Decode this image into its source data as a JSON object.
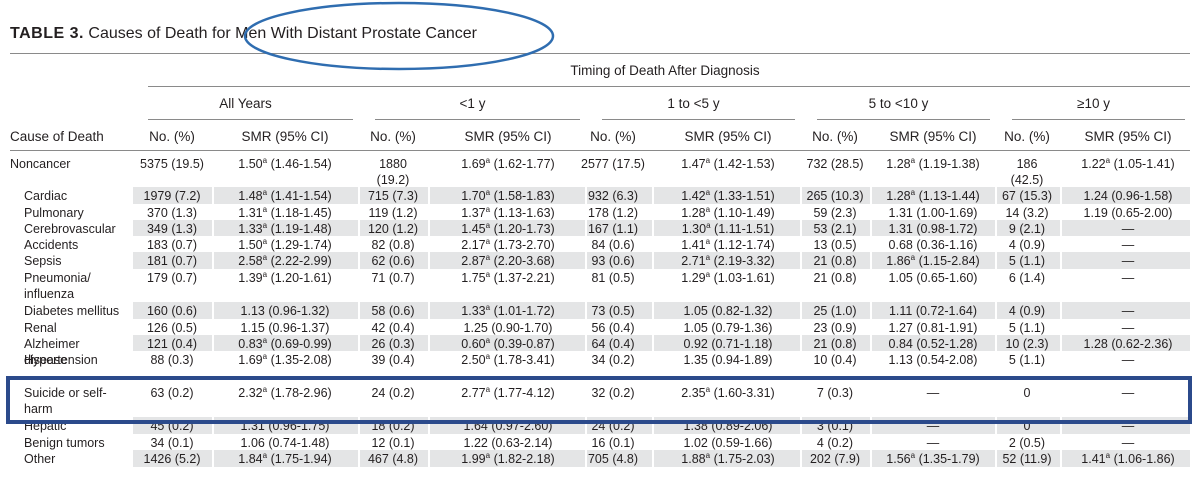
{
  "title": {
    "label": "TABLE 3.",
    "text": "Causes of Death for Men With Distant Prostate Cancer"
  },
  "table": {
    "spanner": "Timing of Death After Diagnosis",
    "groups": [
      "All Years",
      "<1 y",
      "1 to <5 y",
      "5 to <10 y",
      "≥10 y"
    ],
    "columns": [
      "Cause of Death",
      "No. (%)",
      "SMR (95% CI)",
      "No. (%)",
      "SMR (95% CI)",
      "No. (%)",
      "SMR (95% CI)",
      "No. (%)",
      "SMR (95% CI)",
      "No. (%)",
      "SMR (95% CI)"
    ],
    "rows": [
      {
        "label": "Noncancer",
        "cells": [
          "5375 (19.5)",
          {
            "est": "1.50",
            "sup": "a",
            "ci": "(1.46-1.54)"
          },
          "1880 (19.2)",
          {
            "est": "1.69",
            "sup": "a",
            "ci": "(1.62-1.77)"
          },
          "2577 (17.5)",
          {
            "est": "1.47",
            "sup": "a",
            "ci": "(1.42-1.53)"
          },
          "732 (28.5)",
          {
            "est": "1.28",
            "sup": "a",
            "ci": "(1.19-1.38)"
          },
          "186 (42.5)",
          {
            "est": "1.22",
            "sup": "a",
            "ci": "(1.05-1.41)"
          }
        ]
      },
      {
        "label": "Cardiac",
        "cells": [
          "1979 (7.2)",
          {
            "est": "1.48",
            "sup": "a",
            "ci": "(1.41-1.54)"
          },
          "715 (7.3)",
          {
            "est": "1.70",
            "sup": "a",
            "ci": "(1.58-1.83)"
          },
          "932 (6.3)",
          {
            "est": "1.42",
            "sup": "a",
            "ci": "(1.33-1.51)"
          },
          "265 (10.3)",
          {
            "est": "1.28",
            "sup": "a",
            "ci": "(1.13-1.44)"
          },
          "67 (15.3)",
          "1.24 (0.96-1.58)"
        ]
      },
      {
        "label": "Pulmonary",
        "cells": [
          "370 (1.3)",
          {
            "est": "1.31",
            "sup": "a",
            "ci": "(1.18-1.45)"
          },
          "119 (1.2)",
          {
            "est": "1.37",
            "sup": "a",
            "ci": "(1.13-1.63)"
          },
          "178 (1.2)",
          {
            "est": "1.28",
            "sup": "a",
            "ci": "(1.10-1.49)"
          },
          "59 (2.3)",
          "1.31 (1.00-1.69)",
          "14 (3.2)",
          "1.19 (0.65-2.00)"
        ]
      },
      {
        "label": "Cerebrovascular",
        "cells": [
          "349 (1.3)",
          {
            "est": "1.33",
            "sup": "a",
            "ci": "(1.19-1.48)"
          },
          "120 (1.2)",
          {
            "est": "1.45",
            "sup": "a",
            "ci": "(1.20-1.73)"
          },
          "167 (1.1)",
          {
            "est": "1.30",
            "sup": "a",
            "ci": "(1.11-1.51)"
          },
          "53 (2.1)",
          "1.31 (0.98-1.72)",
          "9 (2.1)",
          "—"
        ]
      },
      {
        "label": "Accidents",
        "cells": [
          "183 (0.7)",
          {
            "est": "1.50",
            "sup": "a",
            "ci": "(1.29-1.74)"
          },
          "82 (0.8)",
          {
            "est": "2.17",
            "sup": "a",
            "ci": "(1.73-2.70)"
          },
          "84 (0.6)",
          {
            "est": "1.41",
            "sup": "a",
            "ci": "(1.12-1.74)"
          },
          "13 (0.5)",
          "0.68 (0.36-1.16)",
          "4 (0.9)",
          "—"
        ]
      },
      {
        "label": "Sepsis",
        "cells": [
          "181 (0.7)",
          {
            "est": "2.58",
            "sup": "a",
            "ci": "(2.22-2.99)"
          },
          "62 (0.6)",
          {
            "est": "2.87",
            "sup": "a",
            "ci": "(2.20-3.68)"
          },
          "93 (0.6)",
          {
            "est": "2.71",
            "sup": "a",
            "ci": "(2.19-3.32)"
          },
          "21 (0.8)",
          {
            "est": "1.86",
            "sup": "a",
            "ci": "(1.15-2.84)"
          },
          "5 (1.1)",
          "—"
        ]
      },
      {
        "label": "Pneumonia/ influenza",
        "cells": [
          "179 (0.7)",
          {
            "est": "1.39",
            "sup": "a",
            "ci": "(1.20-1.61)"
          },
          "71 (0.7)",
          {
            "est": "1.75",
            "sup": "a",
            "ci": "(1.37-2.21)"
          },
          "81 (0.5)",
          {
            "est": "1.29",
            "sup": "a",
            "ci": "(1.03-1.61)"
          },
          "21 (0.8)",
          "1.05 (0.65-1.60)",
          "6 (1.4)",
          "—"
        ]
      },
      {
        "label": "Diabetes mellitus",
        "cells": [
          "160 (0.6)",
          "1.13 (0.96-1.32)",
          "58 (0.6)",
          {
            "est": "1.33",
            "sup": "a",
            "ci": "(1.01-1.72)"
          },
          "73 (0.5)",
          "1.05 (0.82-1.32)",
          "25 (1.0)",
          "1.11 (0.72-1.64)",
          "4 (0.9)",
          "—"
        ]
      },
      {
        "label": "Renal",
        "cells": [
          "126 (0.5)",
          "1.15 (0.96-1.37)",
          "42 (0.4)",
          "1.25 (0.90-1.70)",
          "56 (0.4)",
          "1.05 (0.79-1.36)",
          "23 (0.9)",
          "1.27 (0.81-1.91)",
          "5 (1.1)",
          "—"
        ]
      },
      {
        "label": "Alzheimer disease",
        "cells": [
          "121 (0.4)",
          {
            "est": "0.83",
            "sup": "a",
            "ci": "(0.69-0.99)"
          },
          "26 (0.3)",
          {
            "est": "0.60",
            "sup": "a",
            "ci": "(0.39-0.87)"
          },
          "64 (0.4)",
          "0.92 (0.71-1.18)",
          "21 (0.8)",
          "0.84 (0.52-1.28)",
          "10 (2.3)",
          "1.28 (0.62-2.36)"
        ]
      },
      {
        "label": "Hypertension",
        "cells": [
          "88 (0.3)",
          {
            "est": "1.69",
            "sup": "a",
            "ci": "(1.35-2.08)"
          },
          "39 (0.4)",
          {
            "est": "2.50",
            "sup": "a",
            "ci": "(1.78-3.41)"
          },
          "34 (0.2)",
          "1.35 (0.94-1.89)",
          "10 (0.4)",
          "1.13 (0.54-2.08)",
          "5 (1.1)",
          "—"
        ]
      },
      {
        "label": "Suicide or self-harm",
        "cells": [
          "63 (0.2)",
          {
            "est": "2.32",
            "sup": "a",
            "ci": "(1.78-2.96)"
          },
          "24 (0.2)",
          {
            "est": "2.77",
            "sup": "a",
            "ci": "(1.77-4.12)"
          },
          "32 (0.2)",
          {
            "est": "2.35",
            "sup": "a",
            "ci": "(1.60-3.31)"
          },
          "7 (0.3)",
          "—",
          "0",
          "—"
        ]
      },
      {
        "label": "Hepatic",
        "cells": [
          "45 (0.2)",
          "1.31 (0.96-1.75)",
          "18 (0.2)",
          "1.64 (0.97-2.60)",
          "24 (0.2)",
          "1.38 (0.89-2.06)",
          "3 (0.1)",
          "—",
          "0",
          "—"
        ]
      },
      {
        "label": "Benign tumors",
        "cells": [
          "34 (0.1)",
          "1.06 (0.74-1.48)",
          "12 (0.1)",
          "1.22 (0.63-2.14)",
          "16 (0.1)",
          "1.02 (0.59-1.66)",
          "4 (0.2)",
          "—",
          "2 (0.5)",
          "—"
        ]
      },
      {
        "label": "Other",
        "cells": [
          "1426 (5.2)",
          {
            "est": "1.84",
            "sup": "a",
            "ci": "(1.75-1.94)"
          },
          "467 (4.8)",
          {
            "est": "1.99",
            "sup": "a",
            "ci": "(1.82-2.18)"
          },
          "705 (4.8)",
          {
            "est": "1.88",
            "sup": "a",
            "ci": "(1.75-2.03)"
          },
          "202 (7.9)",
          {
            "est": "1.56",
            "sup": "a",
            "ci": "(1.35-1.79)"
          },
          "52 (11.9)",
          {
            "est": "1.41",
            "sup": "a",
            "ci": "(1.06-1.86)"
          }
        ]
      }
    ]
  }
}
